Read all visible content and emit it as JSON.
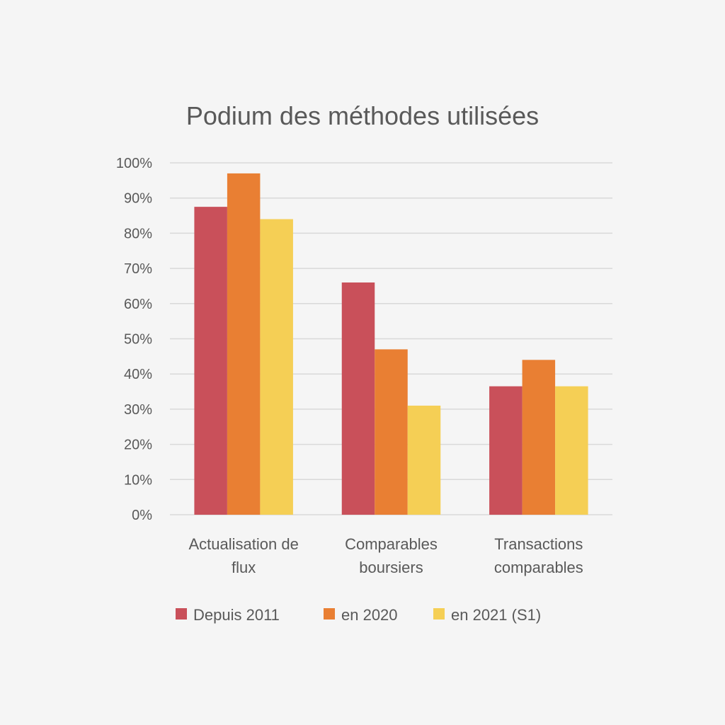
{
  "chart_data": {
    "type": "bar",
    "title": "Podium des méthodes utilisées",
    "xlabel": "",
    "ylabel": "",
    "ylim": [
      0,
      1
    ],
    "y_ticks": [
      "0%",
      "10%",
      "20%",
      "30%",
      "40%",
      "50%",
      "60%",
      "70%",
      "80%",
      "90%",
      "100%"
    ],
    "categories": [
      [
        "Actualisation de",
        "flux"
      ],
      [
        "Comparables",
        "boursiers"
      ],
      [
        "Transactions",
        "comparables"
      ]
    ],
    "series": [
      {
        "name": "Depuis 2011",
        "color": "#c9505a",
        "values": [
          0.875,
          0.66,
          0.365
        ]
      },
      {
        "name": "en 2020",
        "color": "#e97f33",
        "values": [
          0.97,
          0.47,
          0.44
        ]
      },
      {
        "name": "en 2021 (S1)",
        "color": "#f5cf55",
        "values": [
          0.84,
          0.31,
          0.365
        ]
      }
    ],
    "grid": true,
    "legend_position": "bottom"
  }
}
